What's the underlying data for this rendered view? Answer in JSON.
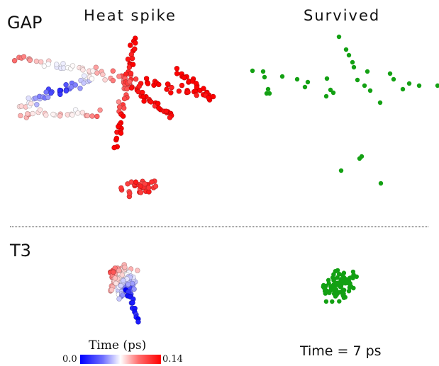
{
  "rows": [
    {
      "label": "GAP"
    },
    {
      "label": "T3"
    }
  ],
  "columns": [
    {
      "title": "Heat spike"
    },
    {
      "title": "Survived"
    }
  ],
  "colorbar": {
    "title": "Time (ps)",
    "min": "0.0",
    "max": "0.14",
    "colors": [
      "#0000ff",
      "#ffffff",
      "#ff0000"
    ]
  },
  "time_label": "Time = 7 ps",
  "survived_color": "#13a013"
}
